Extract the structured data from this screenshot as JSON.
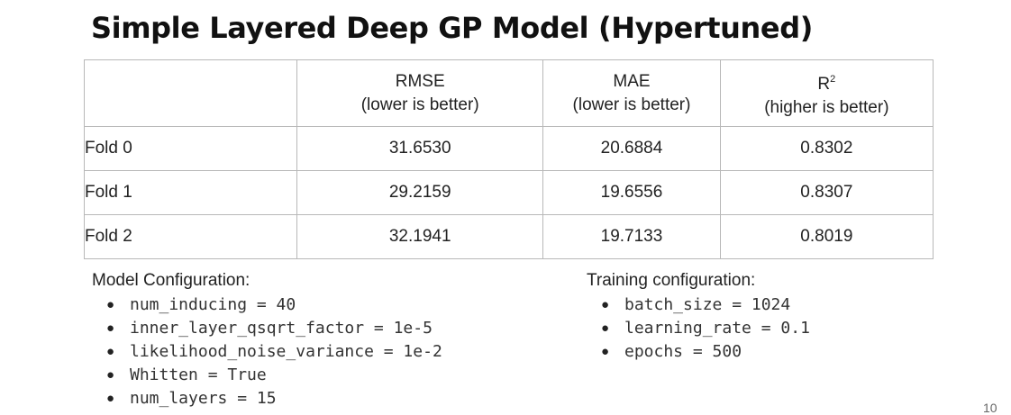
{
  "title": "Simple Layered Deep GP Model (Hypertuned)",
  "table": {
    "headers": [
      {
        "metric": "",
        "note": ""
      },
      {
        "metric": "RMSE",
        "note": "(lower is better)"
      },
      {
        "metric": "MAE",
        "note": "(lower is better)"
      },
      {
        "metric": "R",
        "sup": "2",
        "note": "(higher is better)"
      }
    ],
    "rows": [
      {
        "label": "Fold 0",
        "rmse": "31.6530",
        "mae": "20.6884",
        "r2": "0.8302"
      },
      {
        "label": "Fold 1",
        "rmse": "29.2159",
        "mae": "19.6556",
        "r2": "0.8307"
      },
      {
        "label": "Fold 2",
        "rmse": "32.1941",
        "mae": "19.7133",
        "r2": "0.8019"
      }
    ]
  },
  "model_config": {
    "heading": "Model Configuration:",
    "items": [
      "num_inducing = 40",
      "inner_layer_qsqrt_factor = 1e-5",
      "likelihood_noise_variance = 1e-2",
      "Whitten = True",
      "num_layers = 15"
    ]
  },
  "training_config": {
    "heading": "Training configuration:",
    "items": [
      "batch_size = 1024",
      "learning_rate = 0.1",
      "epochs = 500"
    ]
  },
  "bullet": "●",
  "page_number": "10"
}
